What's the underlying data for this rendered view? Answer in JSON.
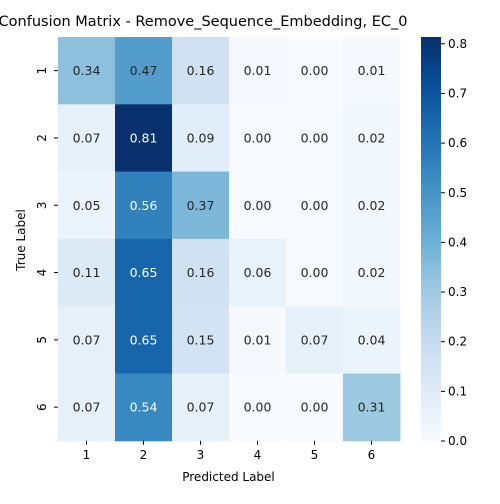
{
  "chart_data": {
    "type": "heatmap",
    "title": "Confusion Matrix - Remove_Sequence_Embedding, EC_0",
    "xlabel": "Predicted Label",
    "ylabel": "True Label",
    "x_categories": [
      "1",
      "2",
      "3",
      "4",
      "5",
      "6"
    ],
    "y_categories": [
      "1",
      "2",
      "3",
      "4",
      "5",
      "6"
    ],
    "values": [
      [
        0.34,
        0.47,
        0.16,
        0.01,
        0.0,
        0.01
      ],
      [
        0.07,
        0.81,
        0.09,
        0.0,
        0.0,
        0.02
      ],
      [
        0.05,
        0.56,
        0.37,
        0.0,
        0.0,
        0.02
      ],
      [
        0.11,
        0.65,
        0.16,
        0.06,
        0.0,
        0.02
      ],
      [
        0.07,
        0.65,
        0.15,
        0.01,
        0.07,
        0.04
      ],
      [
        0.07,
        0.54,
        0.07,
        0.0,
        0.0,
        0.31
      ]
    ],
    "colorbar": {
      "colormap": "Blues",
      "range": [
        0,
        0.8137
      ],
      "ticks": [
        "0.0",
        "0.1",
        "0.2",
        "0.3",
        "0.4",
        "0.5",
        "0.6",
        "0.7",
        "0.8"
      ]
    },
    "grid": false,
    "legend": "colorbar-right"
  }
}
